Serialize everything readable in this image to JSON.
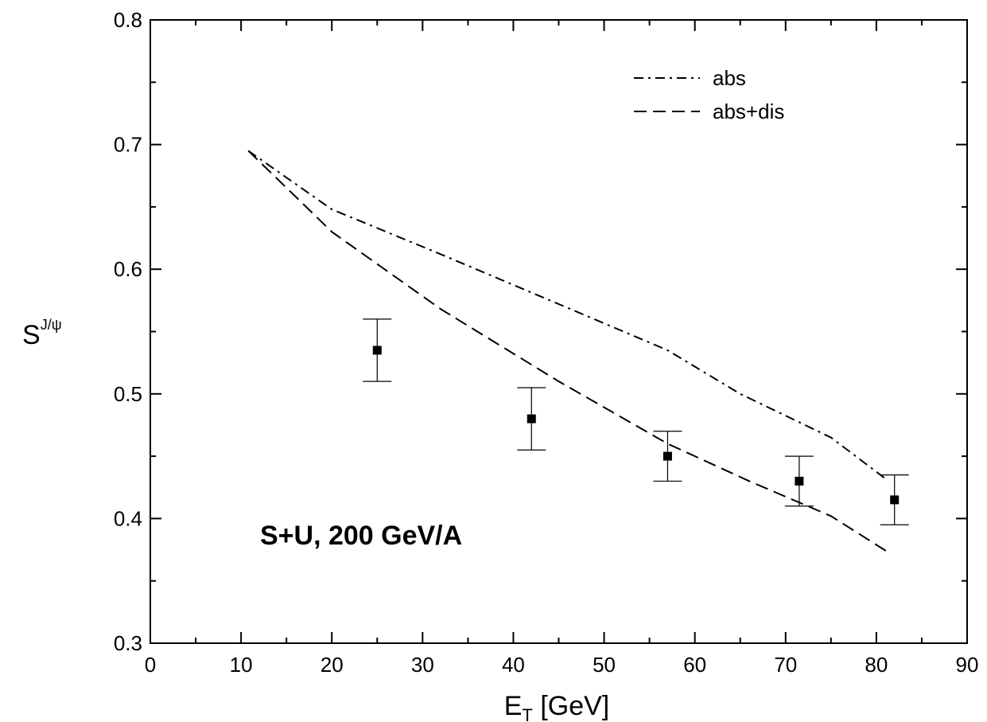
{
  "chart_data": {
    "type": "line",
    "xlabel_main": "E",
    "xlabel_sub": "T",
    "xlabel_rest": " [GeV]",
    "ylabel_main": "S",
    "ylabel_sup": "J/ψ",
    "xlim": [
      0,
      90
    ],
    "ylim": [
      0.3,
      0.8
    ],
    "x_ticks": [
      0,
      10,
      20,
      30,
      40,
      50,
      60,
      70,
      80,
      90
    ],
    "x_tick_labels": [
      "0",
      "10",
      "20",
      "30",
      "40",
      "50",
      "60",
      "70",
      "80",
      "90"
    ],
    "y_ticks": [
      0.3,
      0.4,
      0.5,
      0.6,
      0.7,
      0.8
    ],
    "y_tick_labels": [
      "0.3",
      "0.4",
      "0.5",
      "0.6",
      "0.7",
      "0.8"
    ],
    "x_minor_step": 5,
    "y_minor_step": 0.05,
    "grid": false,
    "legend_position": "top-right",
    "annotation": "S+U, 200 GeV/A",
    "series": [
      {
        "name": "abs",
        "style": "dash-dot",
        "color": "#000000",
        "points": [
          [
            10.8,
            0.695
          ],
          [
            20,
            0.648
          ],
          [
            32,
            0.612
          ],
          [
            45,
            0.572
          ],
          [
            57,
            0.535
          ],
          [
            65,
            0.5
          ],
          [
            75,
            0.465
          ],
          [
            81,
            0.432
          ]
        ]
      },
      {
        "name": "abs+dis",
        "style": "dashed",
        "color": "#000000",
        "points": [
          [
            10.8,
            0.695
          ],
          [
            20,
            0.63
          ],
          [
            32,
            0.568
          ],
          [
            45,
            0.51
          ],
          [
            57,
            0.46
          ],
          [
            66,
            0.43
          ],
          [
            75,
            0.402
          ],
          [
            81.5,
            0.372
          ]
        ]
      }
    ],
    "data_points": [
      {
        "x": 25,
        "y": 0.535,
        "ylow": 0.51,
        "yhigh": 0.56
      },
      {
        "x": 42,
        "y": 0.48,
        "ylow": 0.455,
        "yhigh": 0.505
      },
      {
        "x": 57,
        "y": 0.45,
        "ylow": 0.43,
        "yhigh": 0.47
      },
      {
        "x": 71.5,
        "y": 0.43,
        "ylow": 0.41,
        "yhigh": 0.45
      },
      {
        "x": 82,
        "y": 0.415,
        "ylow": 0.395,
        "yhigh": 0.435
      }
    ]
  }
}
